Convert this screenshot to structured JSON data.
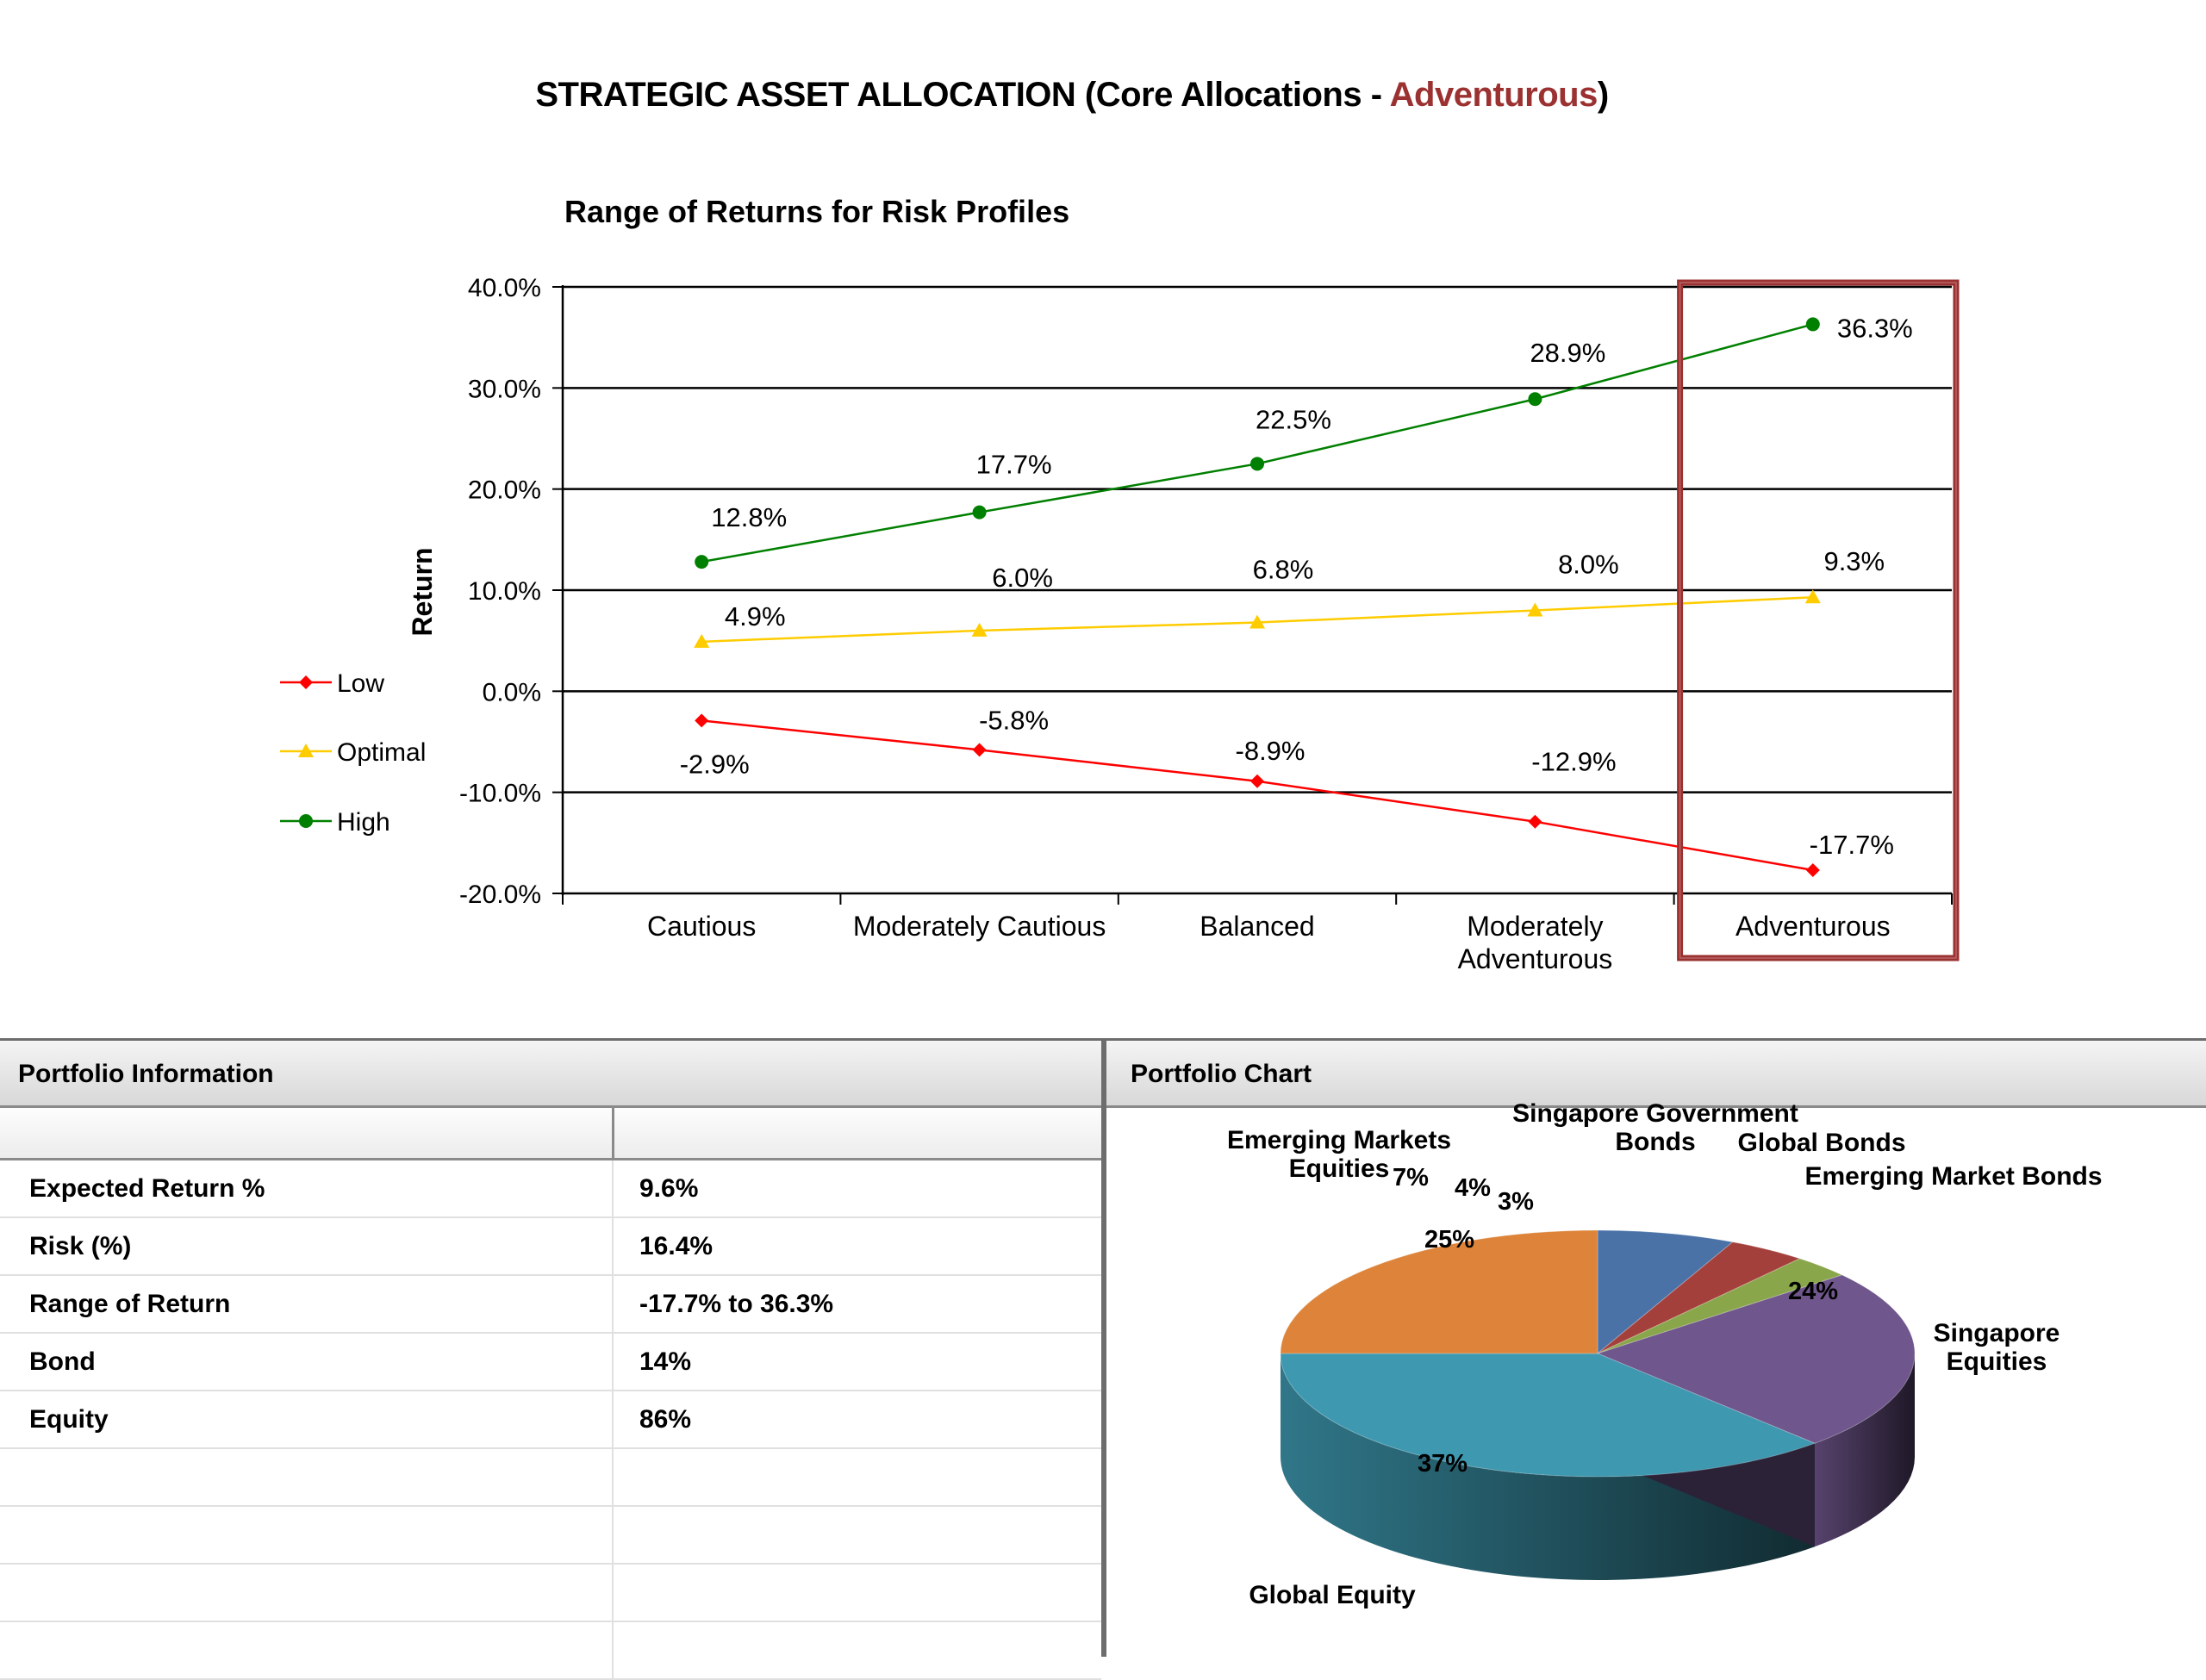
{
  "page": {
    "title_prefix": "STRATEGIC ASSET ALLOCATION (Core Allocations - ",
    "title_accent": "Adventurous",
    "title_suffix": ")",
    "accent_color": "#9b3131"
  },
  "chart_data": [
    {
      "type": "line",
      "title": "Range of Returns for Risk Profiles",
      "xlabel": "",
      "ylabel": "Return",
      "categories": [
        "Cautious",
        "Moderately Cautious",
        "Balanced",
        "Moderately Adventurous",
        "Adventurous"
      ],
      "ylim": [
        -20,
        40
      ],
      "yticks": [
        40,
        30,
        20,
        10,
        0,
        -10,
        -20
      ],
      "ytick_labels": [
        "40.0%",
        "30.0%",
        "20.0%",
        "10.0%",
        "0.0%",
        "-10.0%",
        "-20.0%"
      ],
      "grid": true,
      "legend_position": "left",
      "highlighted_category": "Adventurous",
      "highlight_color": "#9b3131",
      "series": [
        {
          "name": "Low",
          "color": "#ff0000",
          "marker": "diamond",
          "values": [
            -2.9,
            -5.8,
            -8.9,
            -12.9,
            -17.7
          ],
          "labels": [
            "-2.9%",
            "-5.8%",
            "-8.9%",
            "-12.9%",
            "-17.7%"
          ]
        },
        {
          "name": "Optimal",
          "color": "#ffcc00",
          "marker": "triangle",
          "values": [
            4.9,
            6.0,
            6.8,
            8.0,
            9.3
          ],
          "labels": [
            "4.9%",
            "6.0%",
            "6.8%",
            "8.0%",
            "9.3%"
          ]
        },
        {
          "name": "High",
          "color": "#008000",
          "marker": "circle",
          "values": [
            12.8,
            17.7,
            22.5,
            28.9,
            36.3
          ],
          "labels": [
            "12.8%",
            "17.7%",
            "22.5%",
            "28.9%",
            "36.3%"
          ]
        }
      ]
    },
    {
      "type": "pie",
      "slices": [
        {
          "name": "Singapore Government Bonds",
          "value": 7,
          "label": "7%",
          "color": "#4a72a7"
        },
        {
          "name": "Global Bonds",
          "value": 4,
          "label": "4%",
          "color": "#a4403c"
        },
        {
          "name": "Emerging Market Bonds",
          "value": 3,
          "label": "3%",
          "color": "#8aa64a"
        },
        {
          "name": "Singapore Equities",
          "value": 24,
          "label": "24%",
          "color": "#6f568c"
        },
        {
          "name": "Global Equity",
          "value": 37,
          "label": "37%",
          "color": "#3e98b0"
        },
        {
          "name": "Emerging Markets Equities",
          "value": 25,
          "label": "25%",
          "color": "#dd843a"
        }
      ]
    }
  ],
  "portfolio_info": {
    "header": "Portfolio Information",
    "rows": [
      {
        "label": "Expected Return %",
        "value": "9.6%"
      },
      {
        "label": "Risk (%)",
        "value": "16.4%"
      },
      {
        "label": "Range of Return",
        "value": "-17.7% to 36.3%"
      },
      {
        "label": "Bond",
        "value": "14%"
      },
      {
        "label": "Equity",
        "value": "86%"
      }
    ]
  },
  "portfolio_chart": {
    "header": "Portfolio Chart"
  }
}
